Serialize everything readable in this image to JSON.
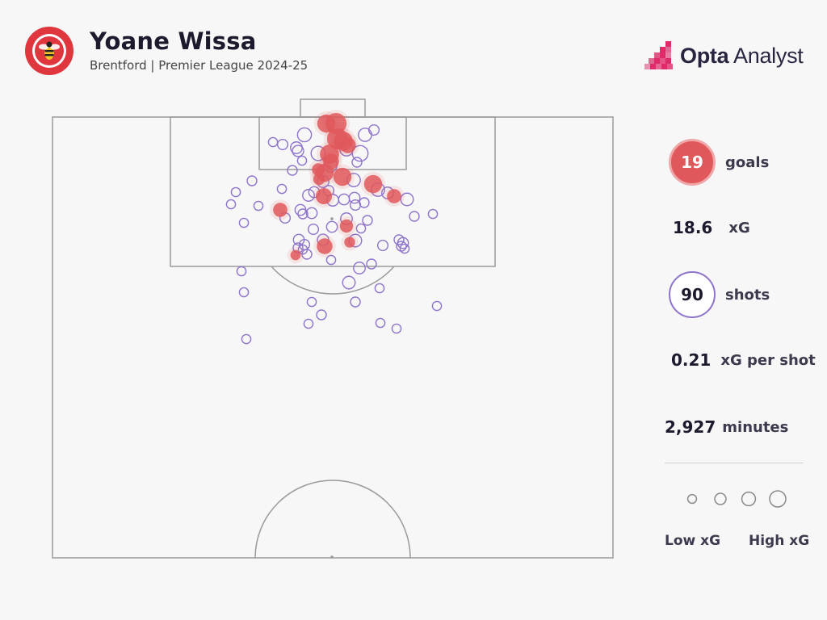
{
  "header": {
    "title": "Yoane Wissa",
    "subtitle": "Brentford | Premier League 2024-25",
    "club_badge_text": "BRENTFORD FOOTBALL CLUB",
    "brand_bold": "Opta",
    "brand_regular": " Analyst"
  },
  "stats": {
    "goals_value": "19",
    "goals_label": "goals",
    "xg_value": "18.6",
    "xg_label": "xG",
    "shots_value": "90",
    "shots_label": "shots",
    "xg_per_shot_value": "0.21",
    "xg_per_shot_label": "xG per shot",
    "minutes_value": "2,927",
    "minutes_label": "minutes"
  },
  "legend": {
    "low_label": "Low xG",
    "high_label": "High xG",
    "sizes_xg": [
      0.03,
      0.08,
      0.15,
      0.25
    ]
  },
  "colors": {
    "goal": "#e0585c",
    "non_goal": "#8e74cc",
    "pitch_line": "#9a9a9a",
    "text": "#1d1a2e"
  },
  "chart_data": {
    "type": "scatter",
    "x_axis_units": "yards from pitch centre line (negative = left)",
    "y_axis_units": "yards from goal line",
    "series": [
      {
        "outcome": "goal",
        "points": [
          {
            "x": -0.8,
            "y": 0.8,
            "xg": 0.3
          },
          {
            "x": 0.4,
            "y": 0.8,
            "xg": 0.45
          },
          {
            "x": 0.6,
            "y": 2.7,
            "xg": 0.45
          },
          {
            "x": 1.3,
            "y": 3.0,
            "xg": 0.35
          },
          {
            "x": 1.9,
            "y": 3.5,
            "xg": 0.2
          },
          {
            "x": -0.4,
            "y": 4.6,
            "xg": 0.35
          },
          {
            "x": -0.2,
            "y": 5.5,
            "xg": 0.2
          },
          {
            "x": -1.8,
            "y": 6.5,
            "xg": 0.1
          },
          {
            "x": -1.0,
            "y": 6.9,
            "xg": 0.3
          },
          {
            "x": -1.7,
            "y": 7.7,
            "xg": 0.08
          },
          {
            "x": 1.2,
            "y": 7.4,
            "xg": 0.3
          },
          {
            "x": 5.0,
            "y": 8.3,
            "xg": 0.3
          },
          {
            "x": -1.1,
            "y": 9.8,
            "xg": 0.22
          },
          {
            "x": 7.6,
            "y": 9.8,
            "xg": 0.15
          },
          {
            "x": -6.5,
            "y": 11.5,
            "xg": 0.15
          },
          {
            "x": 1.7,
            "y": 13.5,
            "xg": 0.12
          },
          {
            "x": 2.1,
            "y": 15.5,
            "xg": 0.06
          },
          {
            "x": -1.0,
            "y": 16.0,
            "xg": 0.2
          },
          {
            "x": -4.6,
            "y": 17.1,
            "xg": 0.05
          }
        ]
      },
      {
        "outcome": "no goal",
        "points": [
          {
            "x": -3.5,
            "y": 2.2,
            "xg": 0.14
          },
          {
            "x": 4.0,
            "y": 2.2,
            "xg": 0.12
          },
          {
            "x": 5.1,
            "y": 1.6,
            "xg": 0.05
          },
          {
            "x": -7.4,
            "y": 3.1,
            "xg": 0.03
          },
          {
            "x": -6.2,
            "y": 3.4,
            "xg": 0.05
          },
          {
            "x": -4.5,
            "y": 3.8,
            "xg": 0.08
          },
          {
            "x": -4.3,
            "y": 4.2,
            "xg": 0.07
          },
          {
            "x": -1.8,
            "y": 4.5,
            "xg": 0.15
          },
          {
            "x": 1.7,
            "y": 4.0,
            "xg": 0.12
          },
          {
            "x": 3.4,
            "y": 4.5,
            "xg": 0.2
          },
          {
            "x": -10.0,
            "y": 7.9,
            "xg": 0.04
          },
          {
            "x": -1.2,
            "y": 8.0,
            "xg": 0.08
          },
          {
            "x": -6.3,
            "y": 8.9,
            "xg": 0.03
          },
          {
            "x": -3.0,
            "y": 9.7,
            "xg": 0.08
          },
          {
            "x": -2.3,
            "y": 9.3,
            "xg": 0.06
          },
          {
            "x": -12.0,
            "y": 9.3,
            "xg": 0.03
          },
          {
            "x": 5.6,
            "y": 9.0,
            "xg": 0.12
          },
          {
            "x": 6.8,
            "y": 9.4,
            "xg": 0.08
          },
          {
            "x": 9.2,
            "y": 10.2,
            "xg": 0.1
          },
          {
            "x": 0.0,
            "y": 10.3,
            "xg": 0.08
          },
          {
            "x": 1.4,
            "y": 10.2,
            "xg": 0.06
          },
          {
            "x": 2.7,
            "y": 10.0,
            "xg": 0.06
          },
          {
            "x": 3.9,
            "y": 10.6,
            "xg": 0.04
          },
          {
            "x": -12.6,
            "y": 10.8,
            "xg": 0.03
          },
          {
            "x": 2.8,
            "y": 10.9,
            "xg": 0.05
          },
          {
            "x": -4.0,
            "y": 11.5,
            "xg": 0.06
          },
          {
            "x": -2.6,
            "y": 11.9,
            "xg": 0.06
          },
          {
            "x": -3.7,
            "y": 12.0,
            "xg": 0.04
          },
          {
            "x": -5.9,
            "y": 12.5,
            "xg": 0.05
          },
          {
            "x": 1.7,
            "y": 12.6,
            "xg": 0.08
          },
          {
            "x": 4.3,
            "y": 12.8,
            "xg": 0.04
          },
          {
            "x": 10.1,
            "y": 12.3,
            "xg": 0.04
          },
          {
            "x": 12.4,
            "y": 12.0,
            "xg": 0.03
          },
          {
            "x": -11.0,
            "y": 13.1,
            "xg": 0.03
          },
          {
            "x": -0.1,
            "y": 13.6,
            "xg": 0.06
          },
          {
            "x": -1.2,
            "y": 15.2,
            "xg": 0.07
          },
          {
            "x": -2.4,
            "y": 13.9,
            "xg": 0.05
          },
          {
            "x": 2.8,
            "y": 15.3,
            "xg": 0.1
          },
          {
            "x": -4.2,
            "y": 15.2,
            "xg": 0.06
          },
          {
            "x": -3.5,
            "y": 15.8,
            "xg": 0.05
          },
          {
            "x": 6.2,
            "y": 15.9,
            "xg": 0.05
          },
          {
            "x": 8.5,
            "y": 16.0,
            "xg": 0.04
          },
          {
            "x": 8.7,
            "y": 15.6,
            "xg": 0.06
          },
          {
            "x": 8.2,
            "y": 15.2,
            "xg": 0.04
          },
          {
            "x": 8.9,
            "y": 16.3,
            "xg": 0.03
          },
          {
            "x": -4.3,
            "y": 16.2,
            "xg": 0.04
          },
          {
            "x": -3.7,
            "y": 16.4,
            "xg": 0.03
          },
          {
            "x": -3.2,
            "y": 17.0,
            "xg": 0.04
          },
          {
            "x": -0.2,
            "y": 17.7,
            "xg": 0.03
          },
          {
            "x": 3.3,
            "y": 18.7,
            "xg": 0.08
          },
          {
            "x": 4.8,
            "y": 18.2,
            "xg": 0.04
          },
          {
            "x": 2.0,
            "y": 20.5,
            "xg": 0.1
          },
          {
            "x": 5.8,
            "y": 21.2,
            "xg": 0.03
          },
          {
            "x": -11.3,
            "y": 19.1,
            "xg": 0.03
          },
          {
            "x": -11.0,
            "y": 21.7,
            "xg": 0.03
          },
          {
            "x": -2.6,
            "y": 22.9,
            "xg": 0.03
          },
          {
            "x": 2.8,
            "y": 22.9,
            "xg": 0.04
          },
          {
            "x": 12.9,
            "y": 23.4,
            "xg": 0.03
          },
          {
            "x": -1.4,
            "y": 24.5,
            "xg": 0.04
          },
          {
            "x": -3.0,
            "y": 25.6,
            "xg": 0.03
          },
          {
            "x": 5.9,
            "y": 25.5,
            "xg": 0.03
          },
          {
            "x": 7.9,
            "y": 26.2,
            "xg": 0.03
          },
          {
            "x": -10.7,
            "y": 27.5,
            "xg": 0.03
          },
          {
            "x": -0.3,
            "y": 6.0,
            "xg": 0.12
          },
          {
            "x": 2.6,
            "y": 7.8,
            "xg": 0.12
          },
          {
            "x": -5.0,
            "y": 6.6,
            "xg": 0.04
          },
          {
            "x": 3.0,
            "y": 5.6,
            "xg": 0.04
          },
          {
            "x": -3.8,
            "y": 5.4,
            "xg": 0.03
          },
          {
            "x": -0.5,
            "y": 9.1,
            "xg": 0.05
          },
          {
            "x": 3.5,
            "y": 13.8,
            "xg": 0.03
          },
          {
            "x": -9.2,
            "y": 11.0,
            "xg": 0.03
          }
        ]
      }
    ]
  }
}
